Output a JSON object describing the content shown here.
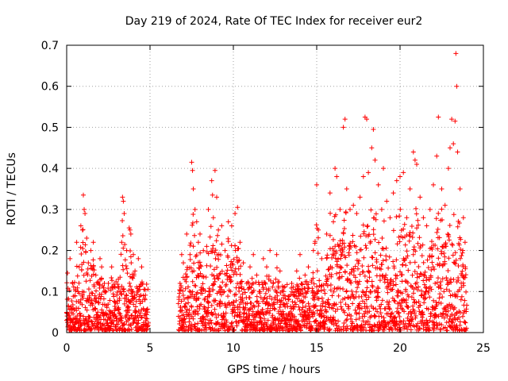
{
  "chart_data": {
    "type": "scatter",
    "title": "Day 219 of 2024, Rate Of TEC Index for receiver eur2",
    "xlabel": "GPS time / hours",
    "ylabel": "ROTI / TECUs",
    "xlim": [
      0,
      25
    ],
    "ylim": [
      0,
      0.7
    ],
    "xticks": [
      0,
      5,
      10,
      15,
      20,
      25
    ],
    "yticks": [
      0,
      0.1,
      0.2,
      0.3,
      0.4,
      0.5,
      0.6,
      0.7
    ],
    "xtick_labels": [
      "0",
      "5",
      "10",
      "15",
      "20",
      "25"
    ],
    "ytick_labels": [
      "0",
      "0.1",
      "0.2",
      "0.3",
      "0.4",
      "0.5",
      "0.6",
      "0.7"
    ],
    "grid": true,
    "marker": "+",
    "color": "#ff0000",
    "data_gap_hours": [
      4.9,
      6.7
    ],
    "series": [
      {
        "name": "ROTI",
        "points": [
          [
            0.0,
            0.03
          ],
          [
            0.05,
            0.145
          ],
          [
            0.1,
            0.065
          ],
          [
            0.2,
            0.18
          ],
          [
            0.35,
            0.12
          ],
          [
            0.5,
            0.09
          ],
          [
            0.6,
            0.22
          ],
          [
            0.75,
            0.16
          ],
          [
            0.85,
            0.26
          ],
          [
            0.95,
            0.25
          ],
          [
            1.0,
            0.335
          ],
          [
            1.05,
            0.3
          ],
          [
            1.1,
            0.29
          ],
          [
            1.2,
            0.23
          ],
          [
            1.3,
            0.17
          ],
          [
            1.45,
            0.2
          ],
          [
            1.6,
            0.22
          ],
          [
            1.75,
            0.14
          ],
          [
            1.9,
            0.12
          ],
          [
            2.0,
            0.18
          ],
          [
            2.1,
            0.16
          ],
          [
            2.3,
            0.1
          ],
          [
            2.5,
            0.12
          ],
          [
            2.7,
            0.16
          ],
          [
            2.9,
            0.11
          ],
          [
            3.1,
            0.13
          ],
          [
            3.3,
            0.22
          ],
          [
            3.35,
            0.33
          ],
          [
            3.4,
            0.32
          ],
          [
            3.45,
            0.29
          ],
          [
            3.6,
            0.2
          ],
          [
            3.75,
            0.255
          ],
          [
            3.8,
            0.25
          ],
          [
            3.85,
            0.24
          ],
          [
            4.0,
            0.19
          ],
          [
            4.1,
            0.15
          ],
          [
            4.3,
            0.18
          ],
          [
            4.5,
            0.16
          ],
          [
            4.7,
            0.08
          ],
          [
            4.85,
            0.05
          ],
          [
            6.8,
            0.12
          ],
          [
            6.9,
            0.19
          ],
          [
            7.0,
            0.17
          ],
          [
            7.2,
            0.24
          ],
          [
            7.4,
            0.19
          ],
          [
            7.5,
            0.415
          ],
          [
            7.55,
            0.395
          ],
          [
            7.6,
            0.35
          ],
          [
            7.7,
            0.3
          ],
          [
            7.8,
            0.27
          ],
          [
            7.9,
            0.22
          ],
          [
            8.0,
            0.24
          ],
          [
            8.2,
            0.2
          ],
          [
            8.4,
            0.21
          ],
          [
            8.5,
            0.3
          ],
          [
            8.7,
            0.37
          ],
          [
            8.75,
            0.335
          ],
          [
            8.8,
            0.28
          ],
          [
            8.9,
            0.395
          ],
          [
            9.0,
            0.33
          ],
          [
            9.1,
            0.25
          ],
          [
            9.3,
            0.26
          ],
          [
            9.5,
            0.2
          ],
          [
            9.7,
            0.27
          ],
          [
            9.9,
            0.26
          ],
          [
            10.1,
            0.29
          ],
          [
            10.25,
            0.305
          ],
          [
            10.4,
            0.22
          ],
          [
            10.6,
            0.17
          ],
          [
            10.8,
            0.12
          ],
          [
            11.0,
            0.16
          ],
          [
            11.2,
            0.19
          ],
          [
            11.4,
            0.14
          ],
          [
            11.6,
            0.1
          ],
          [
            11.8,
            0.18
          ],
          [
            12.0,
            0.16
          ],
          [
            12.2,
            0.2
          ],
          [
            12.4,
            0.12
          ],
          [
            12.6,
            0.19
          ],
          [
            12.8,
            0.15
          ],
          [
            13.0,
            0.1
          ],
          [
            13.3,
            0.08
          ],
          [
            13.5,
            0.12
          ],
          [
            13.8,
            0.15
          ],
          [
            14.0,
            0.19
          ],
          [
            14.3,
            0.14
          ],
          [
            14.5,
            0.16
          ],
          [
            14.8,
            0.2
          ],
          [
            15.0,
            0.36
          ],
          [
            15.1,
            0.25
          ],
          [
            15.3,
            0.18
          ],
          [
            15.6,
            0.24
          ],
          [
            15.8,
            0.34
          ],
          [
            16.0,
            0.27
          ],
          [
            16.1,
            0.4
          ],
          [
            16.2,
            0.38
          ],
          [
            16.4,
            0.3
          ],
          [
            16.6,
            0.5
          ],
          [
            16.7,
            0.52
          ],
          [
            16.8,
            0.35
          ],
          [
            17.0,
            0.3
          ],
          [
            17.2,
            0.31
          ],
          [
            17.4,
            0.29
          ],
          [
            17.6,
            0.33
          ],
          [
            17.8,
            0.38
          ],
          [
            17.9,
            0.525
          ],
          [
            18.0,
            0.52
          ],
          [
            18.1,
            0.39
          ],
          [
            18.3,
            0.45
          ],
          [
            18.4,
            0.495
          ],
          [
            18.5,
            0.42
          ],
          [
            18.7,
            0.36
          ],
          [
            18.9,
            0.3
          ],
          [
            19.0,
            0.4
          ],
          [
            19.2,
            0.32
          ],
          [
            19.4,
            0.28
          ],
          [
            19.6,
            0.34
          ],
          [
            19.8,
            0.37
          ],
          [
            20.0,
            0.38
          ],
          [
            20.2,
            0.39
          ],
          [
            20.4,
            0.28
          ],
          [
            20.6,
            0.35
          ],
          [
            20.8,
            0.44
          ],
          [
            20.9,
            0.42
          ],
          [
            21.0,
            0.41
          ],
          [
            21.2,
            0.33
          ],
          [
            21.4,
            0.28
          ],
          [
            21.6,
            0.26
          ],
          [
            21.8,
            0.3
          ],
          [
            22.0,
            0.36
          ],
          [
            22.2,
            0.43
          ],
          [
            22.3,
            0.525
          ],
          [
            22.5,
            0.35
          ],
          [
            22.7,
            0.31
          ],
          [
            22.9,
            0.4
          ],
          [
            23.0,
            0.45
          ],
          [
            23.1,
            0.52
          ],
          [
            23.2,
            0.46
          ],
          [
            23.3,
            0.515
          ],
          [
            23.35,
            0.68
          ],
          [
            23.4,
            0.6
          ],
          [
            23.45,
            0.44
          ],
          [
            23.6,
            0.35
          ],
          [
            23.8,
            0.28
          ],
          [
            23.9,
            0.22
          ]
        ]
      }
    ]
  }
}
